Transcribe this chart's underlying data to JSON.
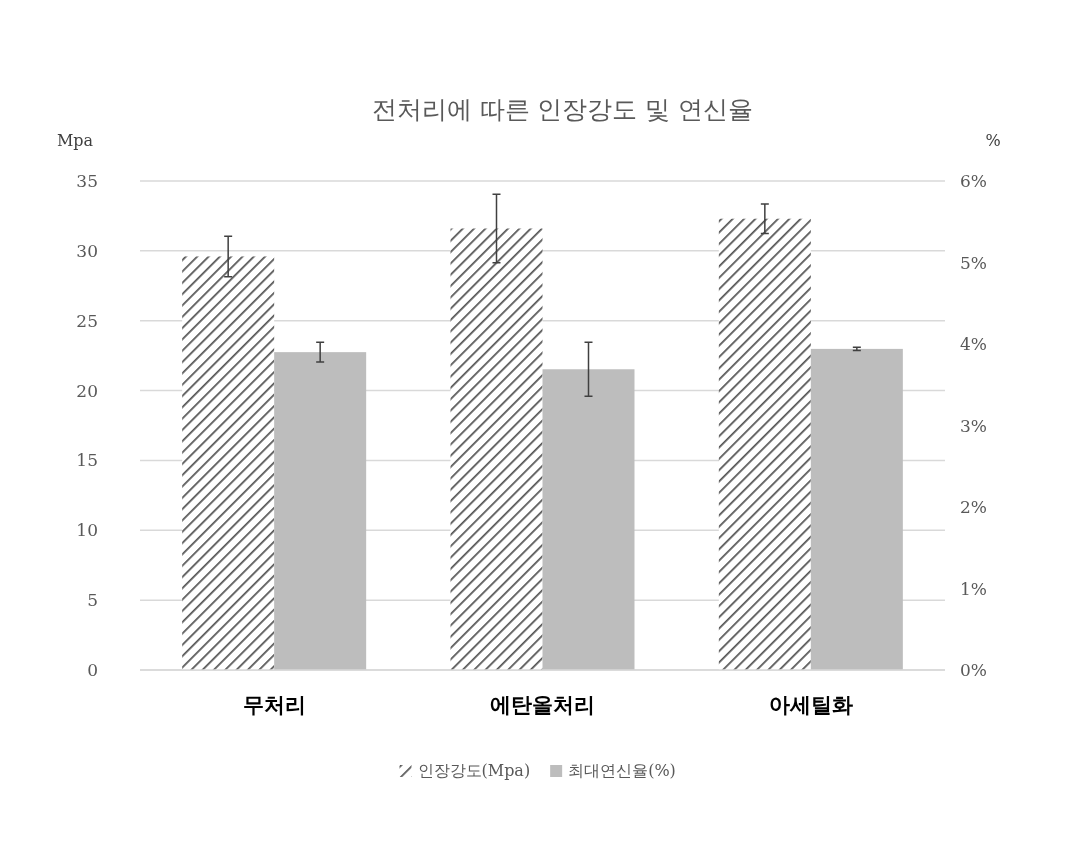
{
  "chart_data": {
    "type": "bar",
    "title": "전처리에 따른 인장강도 및 연신율",
    "ylabel": "Mpa",
    "y2label": "%",
    "categories": [
      "무처리",
      "에탄올처리",
      "아세틸화"
    ],
    "series": [
      {
        "name": "인장강도(Mpa)",
        "color": "#555555",
        "values": [
          29.6,
          31.6,
          32.3
        ],
        "errors": [
          1.45,
          2.45,
          1.05
        ]
      },
      {
        "name": "최대연신율(%)",
        "color": "#bdbdbd",
        "axis": "y2",
        "values": [
          3.9,
          3.69,
          3.94
        ],
        "errors": [
          0.12,
          0.33,
          0.02
        ]
      }
    ],
    "ylim": [
      0,
      35
    ],
    "yticks": [
      0,
      5,
      10,
      15,
      20,
      25,
      30,
      35
    ],
    "y2lim": [
      0,
      6
    ],
    "y2ticks": [
      {
        "value": 0,
        "label": "0%"
      },
      {
        "value": 1,
        "label": "1%"
      },
      {
        "value": 2,
        "label": "2%"
      },
      {
        "value": 3,
        "label": "3%"
      },
      {
        "value": 4,
        "label": "4%"
      },
      {
        "value": 5,
        "label": "5%"
      },
      {
        "value": 6,
        "label": "6%"
      }
    ],
    "grid": "y",
    "legend": "bottom"
  }
}
